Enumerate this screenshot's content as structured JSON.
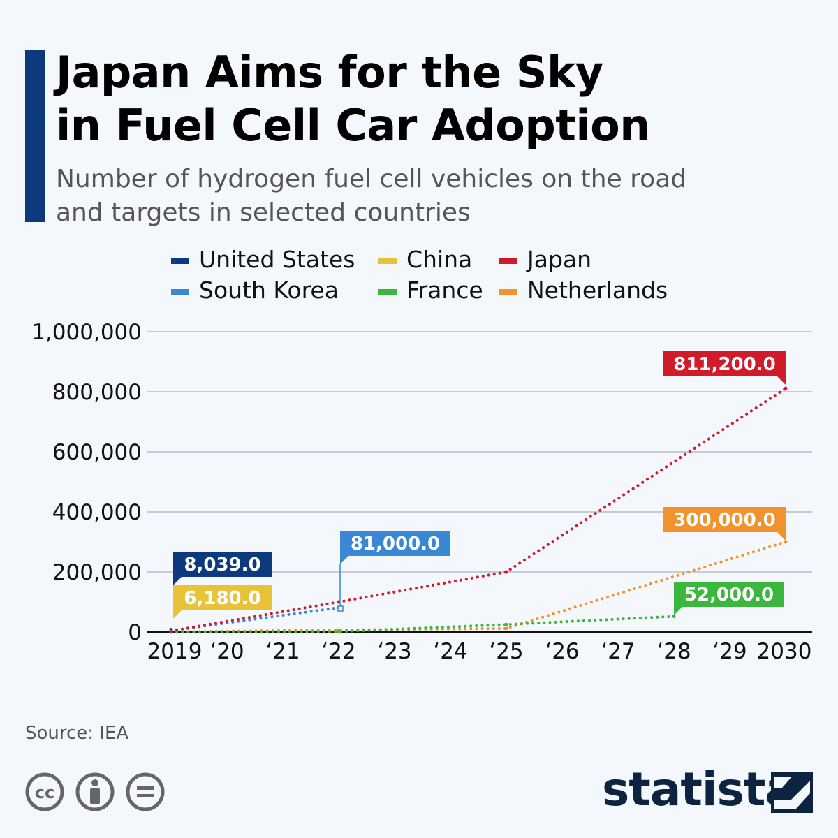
{
  "title_line1": "Japan Aims for the Sky",
  "title_line2": "in Fuel Cell Car Adoption",
  "subtitle_line1": "Number of hydrogen fuel cell vehicles on the road",
  "subtitle_line2": "and targets in selected countries",
  "source": "Source: IEA",
  "brand": "statista",
  "license_icons": [
    "cc-icon",
    "attribution-icon",
    "no-derivatives-icon"
  ],
  "chart_data": {
    "type": "line",
    "x": [
      2019,
      2020,
      2021,
      2022,
      2023,
      2024,
      2025,
      2026,
      2027,
      2028,
      2029,
      2030
    ],
    "xtick_labels": [
      "2019",
      "‘20",
      "‘21",
      "‘22",
      "‘23",
      "‘24",
      "‘25",
      "‘26",
      "‘27",
      "‘28",
      "‘29",
      "2030"
    ],
    "ylim": [
      0,
      1000000
    ],
    "ytick_labels": [
      "0",
      "200,000",
      "400,000",
      "600,000",
      "800,000",
      "1,000,000"
    ],
    "yticks": [
      0,
      200000,
      400000,
      600000,
      800000,
      1000000
    ],
    "grid": true,
    "legend_position": "top",
    "series": [
      {
        "name": "United States",
        "color": "#0d3a7d",
        "points": [
          [
            2019,
            8039
          ]
        ],
        "label": "8,039.0",
        "label_at": 2019
      },
      {
        "name": "China",
        "color": "#e8c33a",
        "points": [
          [
            2019,
            6180
          ]
        ],
        "label": "6,180.0",
        "label_at": 2019
      },
      {
        "name": "Japan",
        "color": "#d01b2b",
        "points": [
          [
            2019,
            3500
          ],
          [
            2022,
            100000
          ],
          [
            2025,
            200000
          ],
          [
            2030,
            811200
          ]
        ],
        "label": "811,200.0",
        "label_at": 2030
      },
      {
        "name": "South Korea",
        "color": "#3a87d6",
        "points": [
          [
            2019,
            5000
          ],
          [
            2022,
            81000
          ]
        ],
        "label": "81,000.0",
        "label_at": 2022
      },
      {
        "name": "France",
        "color": "#3cb73e",
        "points": [
          [
            2019,
            500
          ],
          [
            2022,
            1500
          ],
          [
            2025,
            25000
          ],
          [
            2028,
            52000
          ]
        ],
        "label": "52,000.0",
        "label_at": 2028
      },
      {
        "name": "Netherlands",
        "color": "#f0922e",
        "points": [
          [
            2019,
            400
          ],
          [
            2022,
            7000
          ],
          [
            2025,
            12000
          ],
          [
            2030,
            300000
          ]
        ],
        "label": "300,000.0",
        "label_at": 2030
      }
    ]
  }
}
